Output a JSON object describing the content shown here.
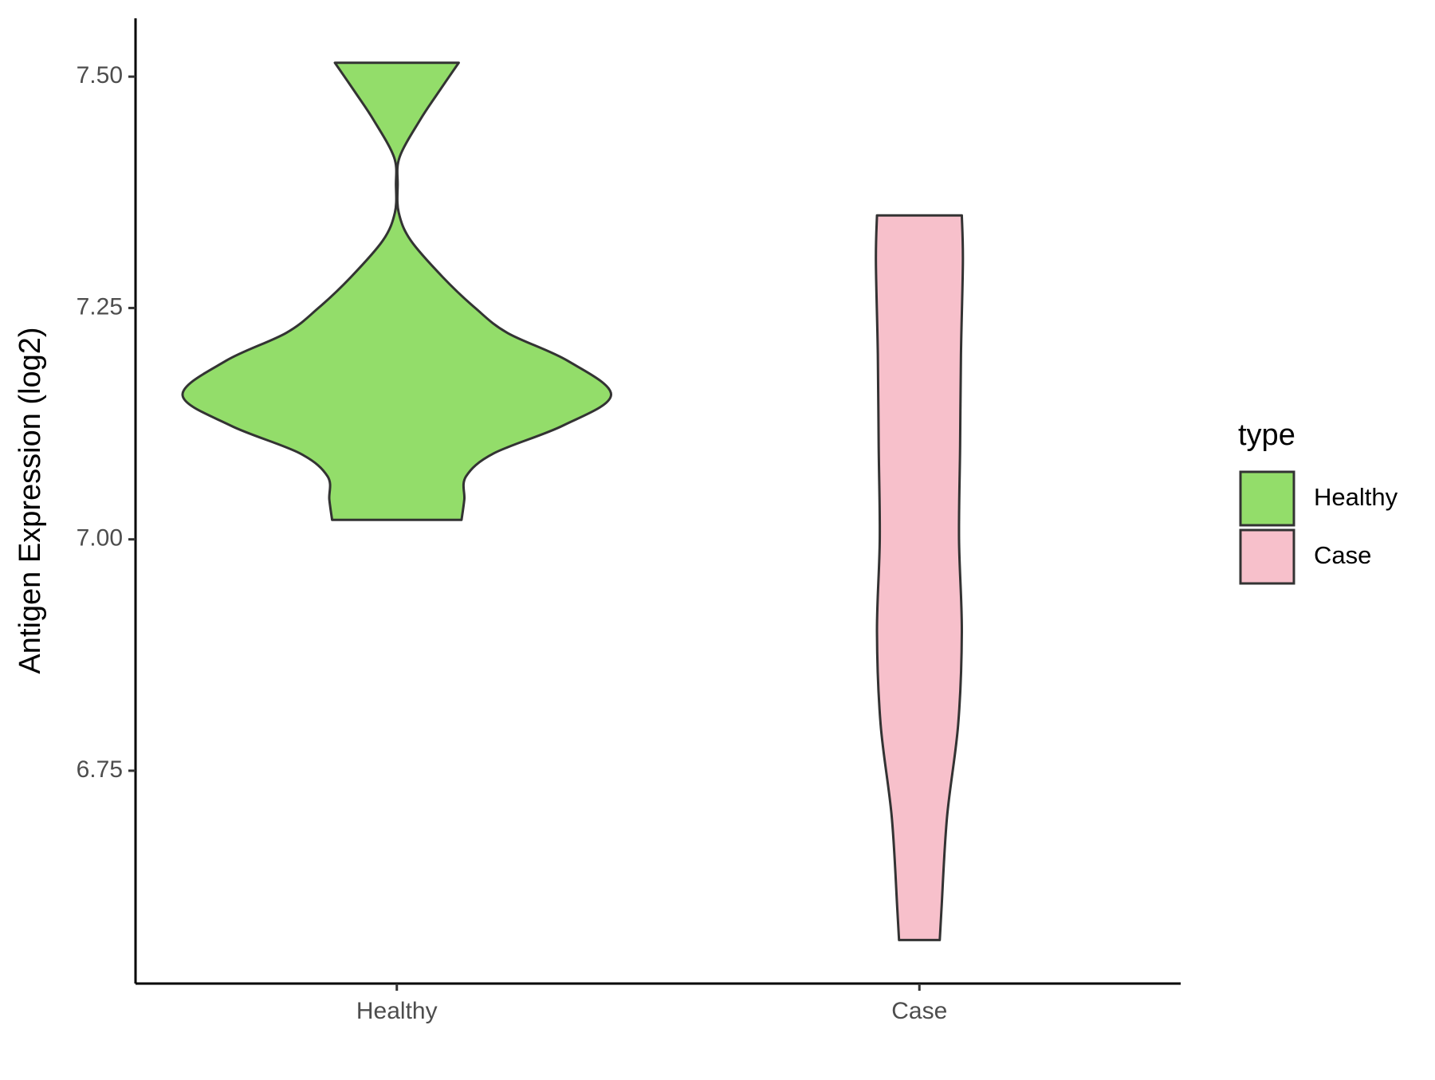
{
  "chart_data": {
    "type": "violin",
    "y_label": "Antigen Expression (log2)",
    "categories": [
      "Healthy",
      "Case"
    ],
    "legend_title": "type",
    "legend_position": "right",
    "ylim": [
      6.52,
      7.563
    ],
    "yticks": [
      6.75,
      {
        "value": 7,
        "label": "7.00"
      },
      7.25,
      {
        "value": 7.5,
        "label": "7.50"
      }
    ],
    "series": [
      {
        "name": "Healthy",
        "color": "#93dd6a",
        "y": [
          7.515,
          7.483,
          7.453,
          7.413,
          7.383,
          7.353,
          7.323,
          7.283,
          7.25,
          7.223,
          7.193,
          7.156,
          7.123,
          7.093,
          7.068,
          7.043,
          7.021
        ],
        "density": [
          0.289,
          0.194,
          0.108,
          0.013,
          0.004,
          0.009,
          0.065,
          0.216,
          0.366,
          0.517,
          0.797,
          1,
          0.776,
          0.453,
          0.323,
          0.315,
          0.302
        ]
      },
      {
        "name": "Case",
        "color": "#f7c0cb",
        "y": [
          7.35,
          7.3,
          7.2,
          7.1,
          7.0,
          6.9,
          6.8,
          6.7,
          6.6,
          6.567
        ],
        "density": [
          0.198,
          0.203,
          0.194,
          0.19,
          0.185,
          0.198,
          0.181,
          0.129,
          0.103,
          0.095
        ]
      }
    ]
  }
}
